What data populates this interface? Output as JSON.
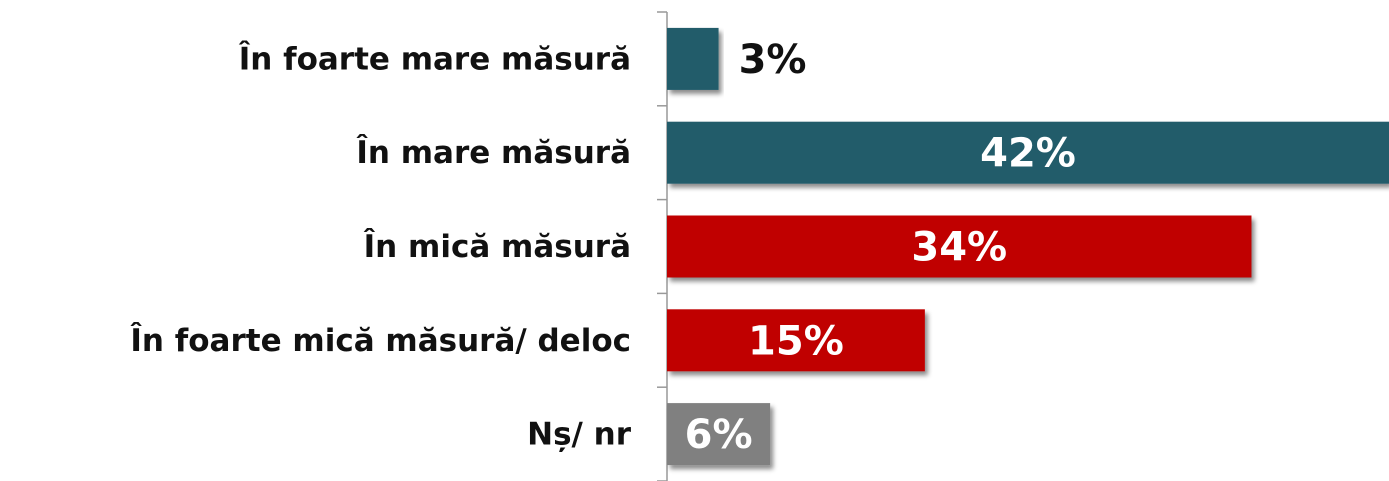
{
  "chart_data": {
    "type": "bar",
    "orientation": "horizontal",
    "categories": [
      "În foarte mare măsură",
      "În mare măsură",
      "În mică măsură",
      "În foarte mică măsură/ deloc",
      "Nș/ nr"
    ],
    "values": [
      3,
      42,
      34,
      15,
      6
    ],
    "value_labels": [
      "3%",
      "42%",
      "34%",
      "15%",
      "6%"
    ],
    "colors": [
      "#245b6b",
      "#245b6b",
      "#c00000",
      "#c00000",
      "#808080"
    ],
    "xlim": [
      0,
      42
    ]
  }
}
